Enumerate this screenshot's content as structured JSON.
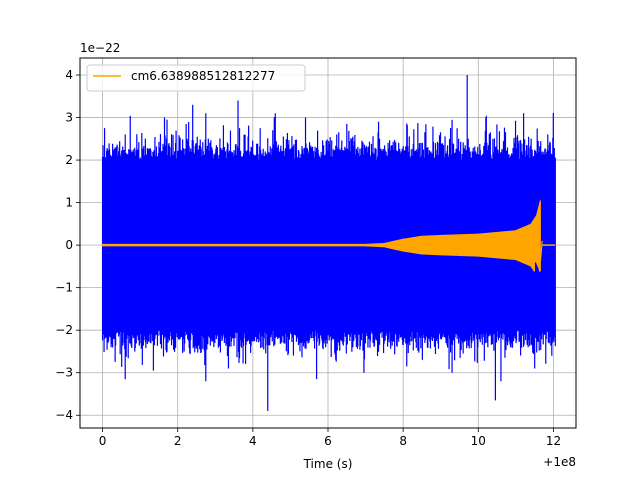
{
  "chart_data": {
    "type": "line",
    "title": "",
    "xlabel": "Time (s)",
    "ylabel": "",
    "x_offset_label": "+1e8",
    "y_scale_label": "1e−22",
    "xlim": [
      -0.6,
      12.6
    ],
    "ylim": [
      -4.3,
      4.4
    ],
    "x_ticks": [
      0,
      2,
      4,
      6,
      8,
      10,
      12
    ],
    "x_tick_labels": [
      "0",
      "2",
      "4",
      "6",
      "8",
      "10",
      "12"
    ],
    "y_ticks": [
      -4,
      -3,
      -2,
      -1,
      0,
      1,
      2,
      3,
      4
    ],
    "y_tick_labels": [
      "−4",
      "−3",
      "−2",
      "−1",
      "0",
      "1",
      "2",
      "3",
      "4"
    ],
    "grid": true,
    "legend_position": "top-left",
    "series": [
      {
        "name": "",
        "color": "#0000ff",
        "kind": "noise",
        "x_range": [
          0,
          12.05
        ],
        "envelope": 2.0,
        "peaks": [
          {
            "x": 0.05,
            "y": 2.75
          },
          {
            "x": 0.6,
            "y": 2.6
          },
          {
            "x": 1.65,
            "y": 3.0
          },
          {
            "x": 2.4,
            "y": 3.3
          },
          {
            "x": 2.75,
            "y": 3.1
          },
          {
            "x": 3.6,
            "y": 3.4
          },
          {
            "x": 4.6,
            "y": 3.1
          },
          {
            "x": 5.4,
            "y": 3.0
          },
          {
            "x": 6.5,
            "y": 2.85
          },
          {
            "x": 7.35,
            "y": 2.9
          },
          {
            "x": 9.7,
            "y": 4.0
          },
          {
            "x": 10.2,
            "y": 3.0
          },
          {
            "x": 11.2,
            "y": 3.1
          },
          {
            "x": 11.85,
            "y": 2.6
          },
          {
            "x": 0.6,
            "y": -3.15
          },
          {
            "x": 1.35,
            "y": -2.95
          },
          {
            "x": 3.35,
            "y": -2.9
          },
          {
            "x": 4.4,
            "y": -3.9
          },
          {
            "x": 5.7,
            "y": -3.15
          },
          {
            "x": 6.95,
            "y": -3.0
          },
          {
            "x": 8.1,
            "y": -2.85
          },
          {
            "x": 9.3,
            "y": -3.0
          },
          {
            "x": 10.45,
            "y": -3.65
          },
          {
            "x": 10.6,
            "y": -3.2
          },
          {
            "x": 11.5,
            "y": -2.9
          },
          {
            "x": 11.95,
            "y": -2.6
          }
        ]
      },
      {
        "name": "cm6.638988512812277",
        "color": "#ffa500",
        "kind": "chirp",
        "x_range": [
          0,
          12.05
        ],
        "merger_x": 11.65,
        "envelope_points": [
          {
            "x": 0,
            "y": 0.03
          },
          {
            "x": 7.0,
            "y": 0.03
          },
          {
            "x": 7.5,
            "y": 0.05
          },
          {
            "x": 8.0,
            "y": 0.15
          },
          {
            "x": 8.5,
            "y": 0.22
          },
          {
            "x": 9.0,
            "y": 0.24
          },
          {
            "x": 10.0,
            "y": 0.27
          },
          {
            "x": 11.0,
            "y": 0.35
          },
          {
            "x": 11.4,
            "y": 0.5
          },
          {
            "x": 11.55,
            "y": 0.7
          },
          {
            "x": 11.65,
            "y": 1.05
          }
        ],
        "ringdown_min": -0.62
      }
    ]
  }
}
